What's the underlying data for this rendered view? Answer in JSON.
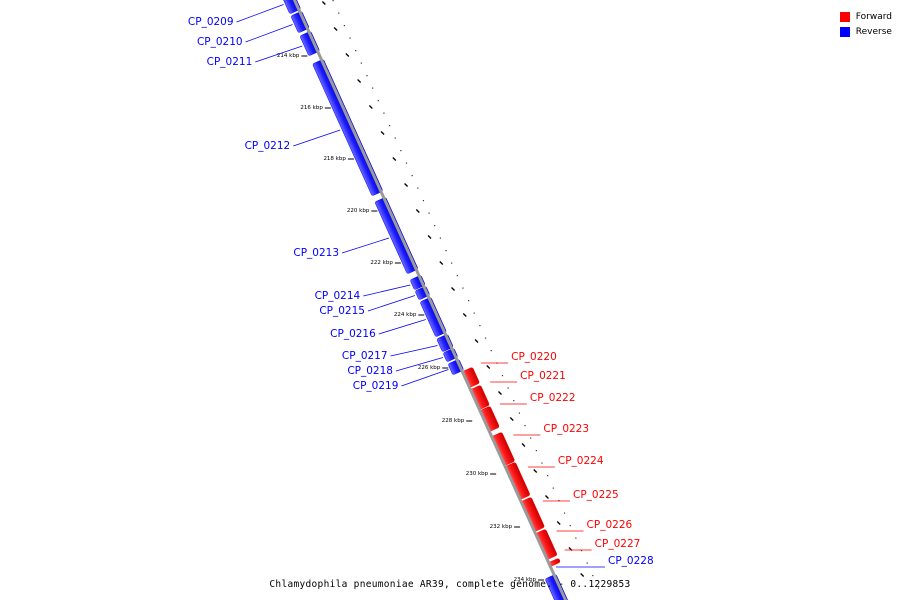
{
  "title": "Chlamydophila pneumoniae AR39, complete genome. - 0..1229853",
  "colors": {
    "forward": "#ff0000",
    "reverse": "#0000ff",
    "backbone": "#999999"
  },
  "legend": [
    {
      "label": "Forward",
      "color": "#ff0000"
    },
    {
      "label": "Reverse",
      "color": "#0000ff"
    }
  ],
  "ticks": [
    "214 kbp",
    "216 kbp",
    "218 kbp",
    "220 kbp",
    "222 kbp",
    "224 kbp",
    "226 kbp",
    "228 kbp",
    "230 kbp",
    "232 kbp",
    "234 kbp"
  ],
  "genes": [
    {
      "name": "CP_0209",
      "strand": "reverse"
    },
    {
      "name": "CP_0210",
      "strand": "reverse"
    },
    {
      "name": "CP_0211",
      "strand": "reverse"
    },
    {
      "name": "CP_0212",
      "strand": "reverse"
    },
    {
      "name": "CP_0213",
      "strand": "reverse"
    },
    {
      "name": "CP_0214",
      "strand": "reverse"
    },
    {
      "name": "CP_0215",
      "strand": "reverse"
    },
    {
      "name": "CP_0216",
      "strand": "reverse"
    },
    {
      "name": "CP_0217",
      "strand": "reverse"
    },
    {
      "name": "CP_0218",
      "strand": "reverse"
    },
    {
      "name": "CP_0219",
      "strand": "reverse"
    },
    {
      "name": "CP_0220",
      "strand": "forward"
    },
    {
      "name": "CP_0221",
      "strand": "forward"
    },
    {
      "name": "CP_0222",
      "strand": "forward"
    },
    {
      "name": "CP_0223",
      "strand": "forward"
    },
    {
      "name": "CP_0224",
      "strand": "forward"
    },
    {
      "name": "CP_0225",
      "strand": "forward"
    },
    {
      "name": "CP_0226",
      "strand": "forward"
    },
    {
      "name": "CP_0227",
      "strand": "forward"
    },
    {
      "name": "CP_0228",
      "strand": "reverse"
    }
  ]
}
